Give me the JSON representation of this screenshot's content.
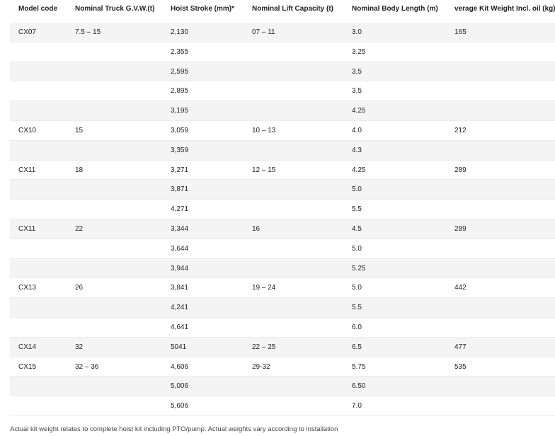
{
  "table": {
    "header": [
      "Model code",
      "Nominal Truck G.V.W.(t)",
      "Hoist Stroke (mm)*",
      "Nominal Lift Capacity (t)",
      "Nominal Body Length (m)",
      "verage Kit Weight Incl. oil (kg)"
    ],
    "rows": [
      [
        "CX07",
        "7.5 – 15",
        "2,130",
        "07 – 11",
        "3.0",
        "165"
      ],
      [
        null,
        null,
        "2,355",
        null,
        "3.25",
        null
      ],
      [
        null,
        null,
        "2,595",
        null,
        "3.5",
        null
      ],
      [
        null,
        null,
        "2,895",
        null,
        "3.5",
        null
      ],
      [
        null,
        null,
        "3,195",
        null,
        "4.25",
        null
      ],
      [
        "CX10",
        "15",
        "3,059",
        "10 – 13",
        "4.0",
        "212"
      ],
      [
        null,
        null,
        "3,359",
        null,
        "4.3",
        null
      ],
      [
        "CX11",
        "18",
        "3,271",
        "12 – 15",
        "4.25",
        "289"
      ],
      [
        null,
        null,
        "3,871",
        null,
        "5.0",
        null
      ],
      [
        null,
        null,
        "4,271",
        null,
        "5.5",
        null
      ],
      [
        "CX11",
        "22",
        "3,344",
        "16",
        "4.5",
        "289"
      ],
      [
        null,
        null,
        "3,644",
        null,
        "5.0",
        null
      ],
      [
        null,
        null,
        "3,944",
        null,
        "5.25",
        null
      ],
      [
        "CX13",
        "26",
        "3,841",
        "19 – 24",
        "5.0",
        "442"
      ],
      [
        null,
        null,
        "4,241",
        null,
        "5.5",
        null
      ],
      [
        null,
        null,
        "4,641",
        null,
        "6.0",
        null
      ],
      [
        "CX14",
        "32",
        "5041",
        "22 – 25",
        "6.5",
        "477"
      ],
      [
        "CX15",
        "32 – 36",
        "4,606",
        "29-32",
        "5.75",
        "535"
      ],
      [
        null,
        null,
        "5,006",
        null,
        "6.50",
        null
      ],
      [
        null,
        null,
        "5,606",
        null,
        "7.0",
        null
      ]
    ]
  },
  "footnote": "Actual kit weight relates to complete hoist kit including PTO/pump. Actual weights vary according to installation"
}
